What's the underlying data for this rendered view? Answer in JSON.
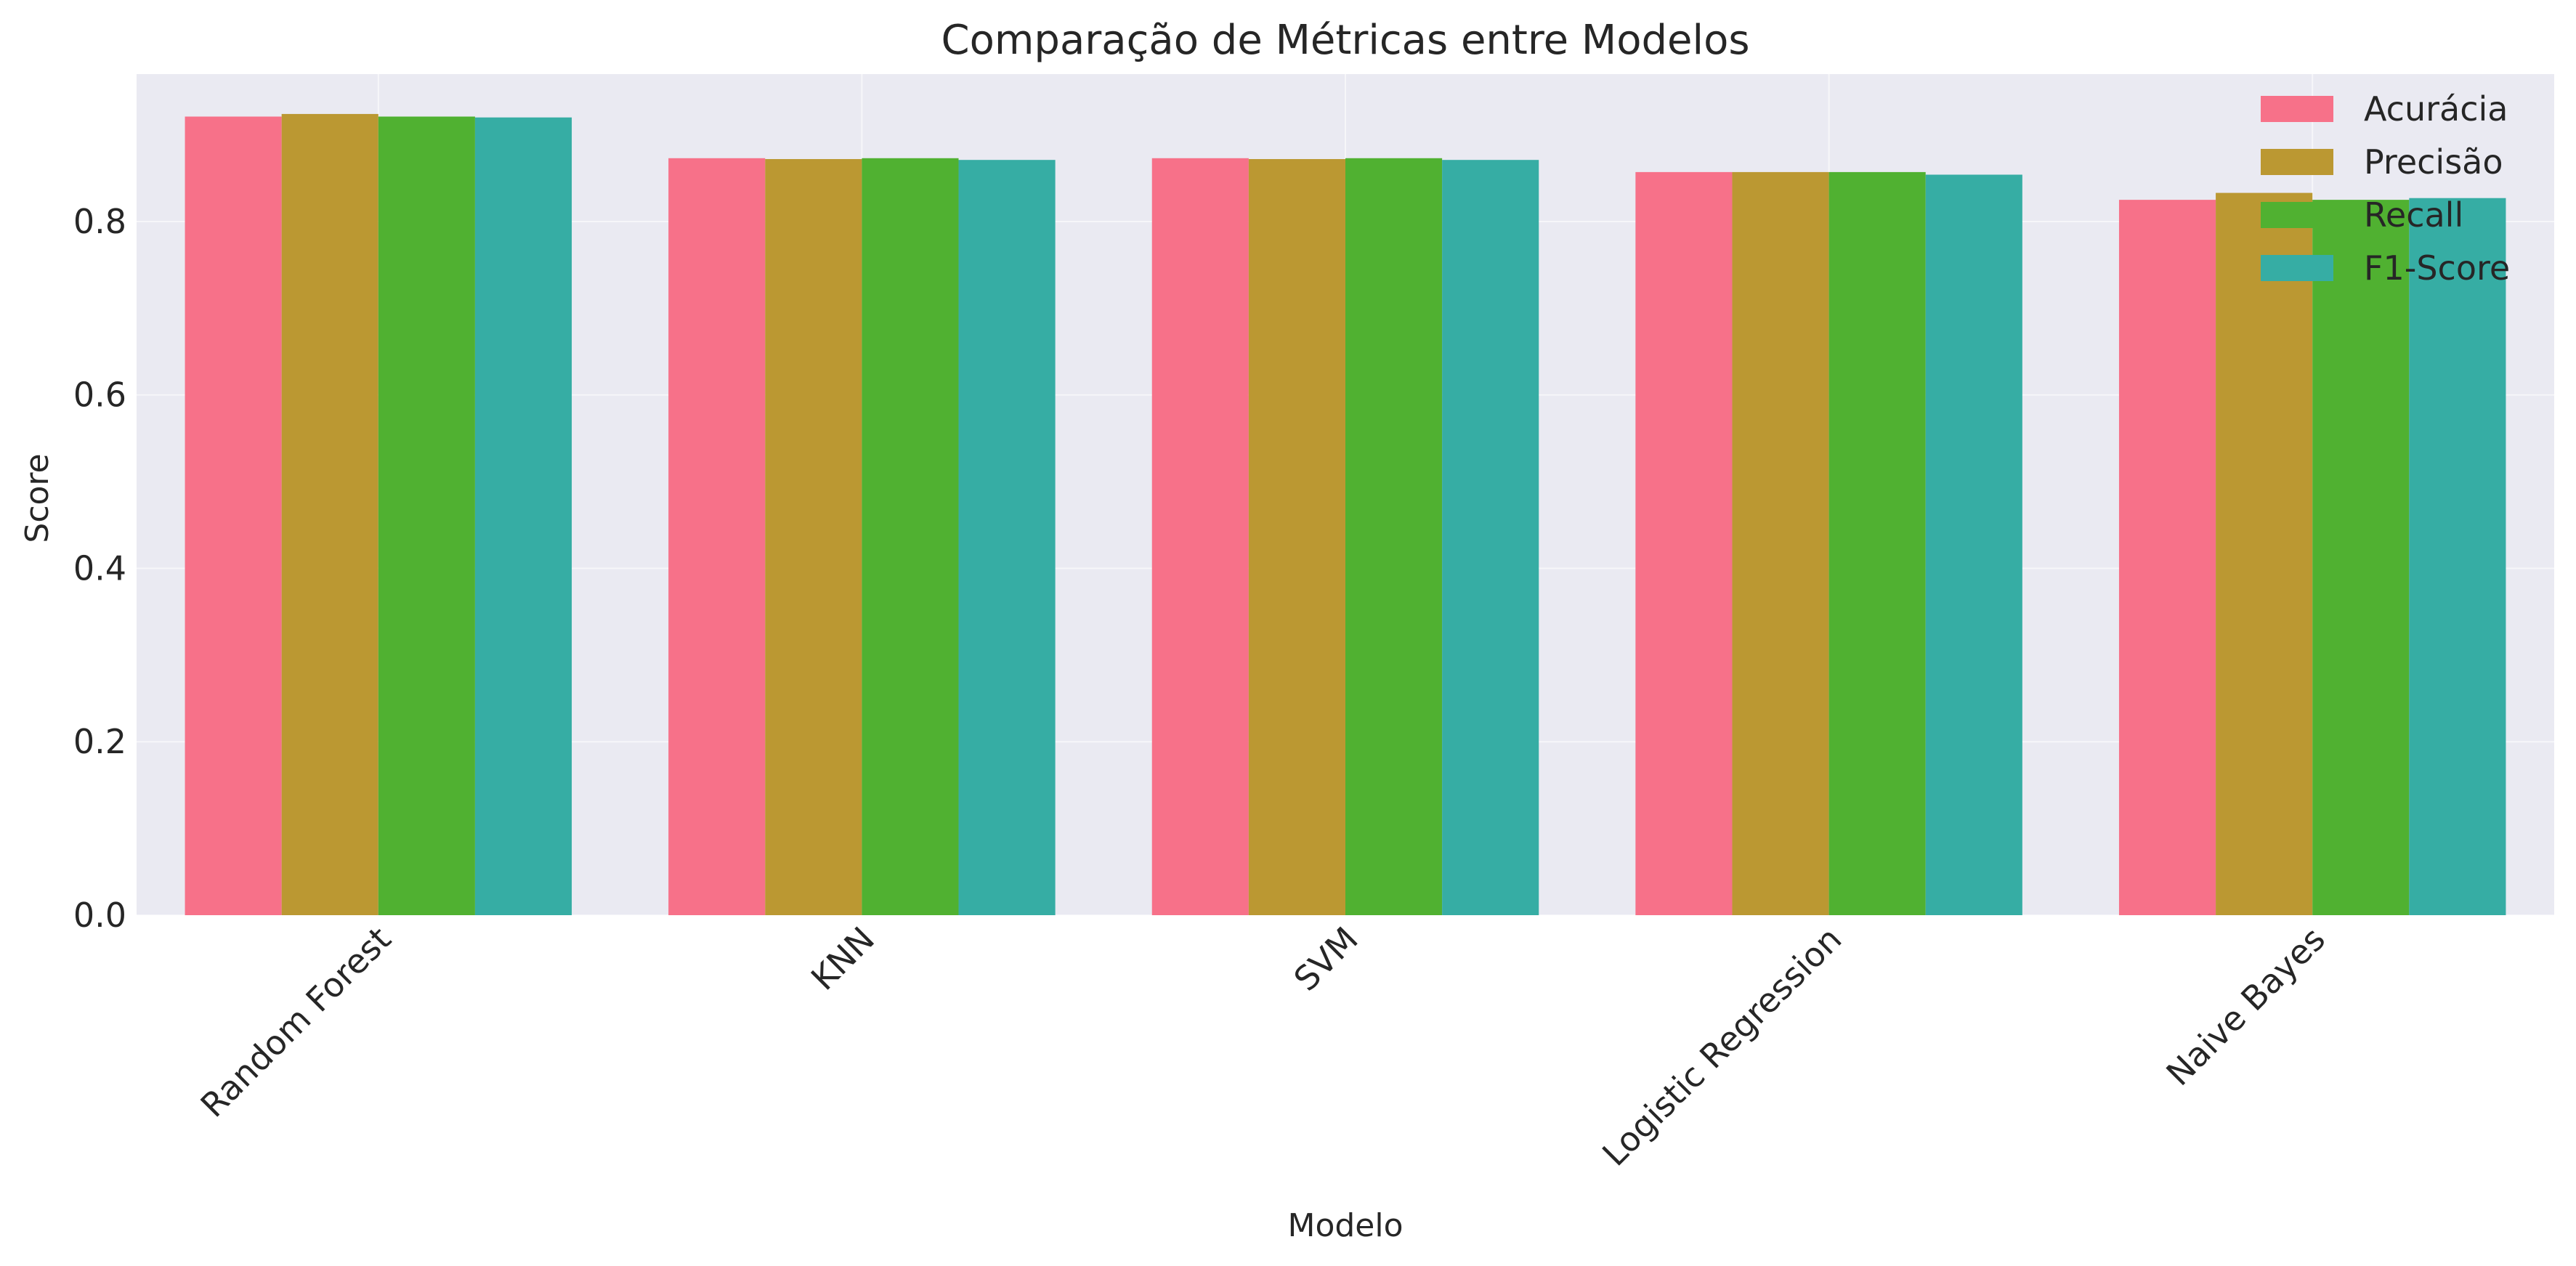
{
  "chart_data": {
    "type": "bar",
    "title": "Comparação de Métricas entre Modelos",
    "xlabel": "Modelo",
    "ylabel": "Score",
    "categories": [
      "Random Forest",
      "KNN",
      "SVM",
      "Logistic Regression",
      "Naive Bayes"
    ],
    "series": [
      {
        "name": "Acurácia",
        "color": "#f77189",
        "values": [
          0.921,
          0.873,
          0.873,
          0.857,
          0.825
        ]
      },
      {
        "name": "Precisão",
        "color": "#bb9832",
        "values": [
          0.924,
          0.872,
          0.872,
          0.857,
          0.833
        ]
      },
      {
        "name": "Recall",
        "color": "#50b131",
        "values": [
          0.921,
          0.873,
          0.873,
          0.857,
          0.825
        ]
      },
      {
        "name": "F1-Score",
        "color": "#36ada4",
        "values": [
          0.92,
          0.871,
          0.871,
          0.854,
          0.827
        ]
      }
    ],
    "ylim": [
      0,
      0.97
    ],
    "yticks": [
      "0.0",
      "0.2",
      "0.4",
      "0.6",
      "0.8"
    ],
    "ytick_values": [
      0,
      0.2,
      0.4,
      0.6,
      0.8
    ],
    "grid": true,
    "legend_position": "top-right",
    "plot_background": "#eaeaf2"
  }
}
